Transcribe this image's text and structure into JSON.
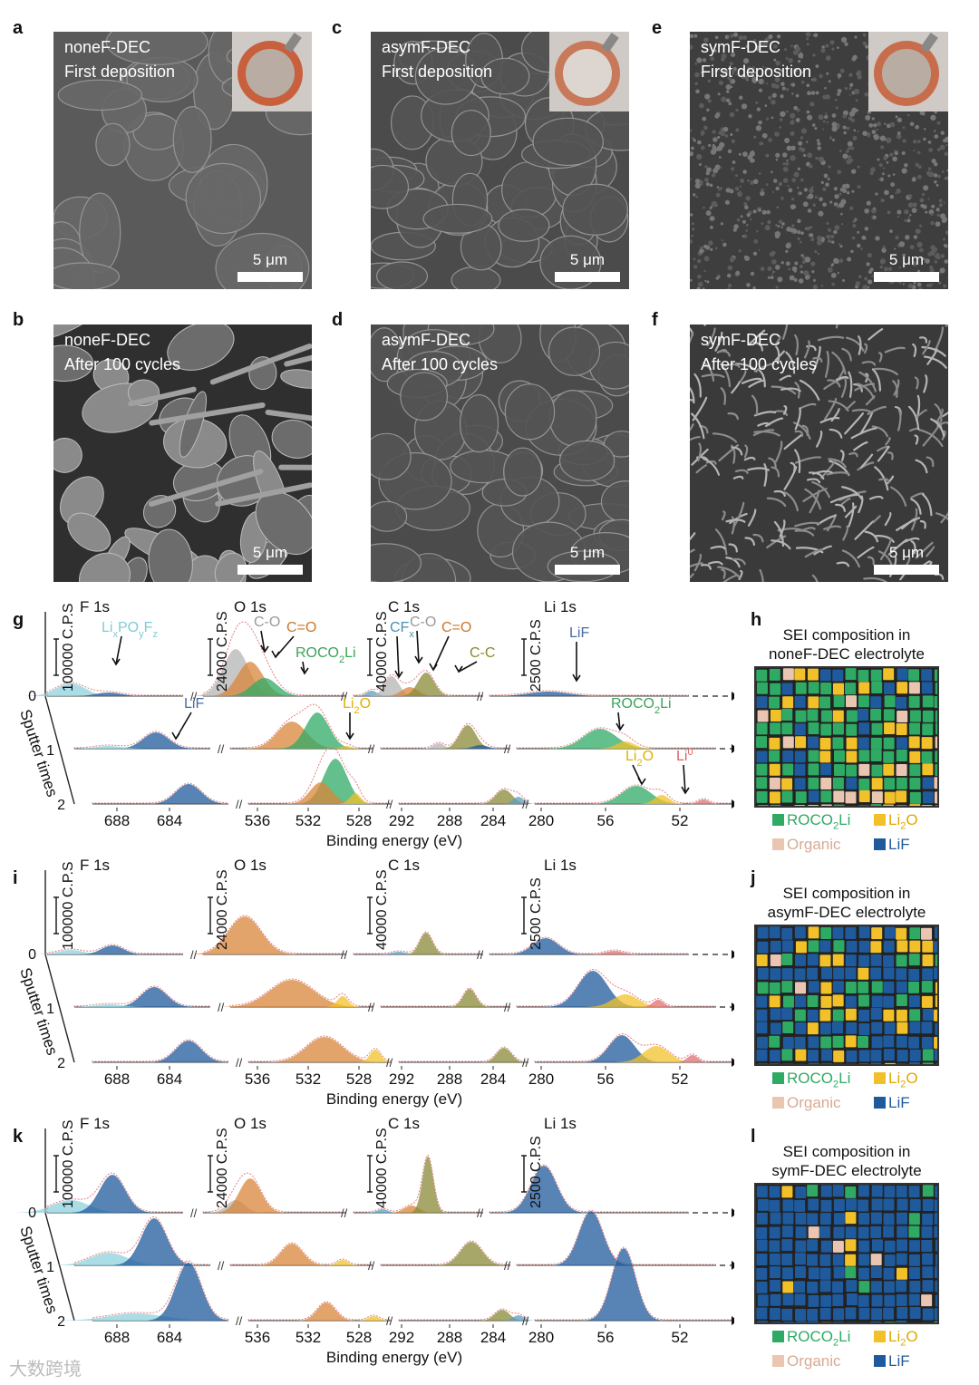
{
  "sem_panels": [
    {
      "id": "a",
      "letter": "a",
      "line1": "noneF-DEC",
      "line2": "First deposition",
      "scale": "5 μm",
      "inset": true,
      "inset_color": "#c8603e",
      "texture": "smooth"
    },
    {
      "id": "c",
      "letter": "c",
      "line1": "asymF-DEC",
      "line2": "First deposition",
      "scale": "5 μm",
      "inset": true,
      "inset_color": "#c8795a",
      "texture": "grain"
    },
    {
      "id": "e",
      "letter": "e",
      "line1": "symF-DEC",
      "line2": "First deposition",
      "scale": "5 μm",
      "inset": true,
      "inset_color": "#c86d4c",
      "texture": "rough"
    },
    {
      "id": "b",
      "letter": "b",
      "line1": "noneF-DEC",
      "line2": "After 100 cycles",
      "scale": "5 μm",
      "inset": false,
      "texture": "chunky"
    },
    {
      "id": "d",
      "letter": "d",
      "line1": "asymF-DEC",
      "line2": "After 100 cycles",
      "scale": "5 μm",
      "inset": false,
      "texture": "grain"
    },
    {
      "id": "f",
      "letter": "f",
      "line1": "symF-DEC",
      "line2": "After 100 cycles",
      "scale": "5 μm",
      "inset": false,
      "texture": "wires"
    }
  ],
  "xps_rows": [
    {
      "letter": "g",
      "comp_letter": "h",
      "comp_title_1": "SEI composition in",
      "comp_title_2": "noneF-DEC electrolyte",
      "annotations": [
        {
          "text": "LixPOyFz",
          "color": "#7fcbd9"
        },
        {
          "text": "C-O",
          "color": "#9a9a9a"
        },
        {
          "text": "C=O",
          "color": "#c8782b"
        },
        {
          "text": "ROCO2Li",
          "color": "#3aa35a"
        },
        {
          "text": "CFx",
          "color": "#4a8fb0"
        },
        {
          "text": "C-O",
          "color": "#9a9a9a"
        },
        {
          "text": "C=O",
          "color": "#c8782b"
        },
        {
          "text": "C-C",
          "color": "#8a8a2a"
        },
        {
          "text": "LiF",
          "color": "#4a6aa5"
        },
        {
          "text": "LiF",
          "color": "#4a6aa5"
        },
        {
          "text": "Li2O",
          "color": "#e0b000"
        },
        {
          "text": "ROCO2Li",
          "color": "#3aa35a"
        },
        {
          "text": "Li2O",
          "color": "#e0b000"
        },
        {
          "text": "Li0",
          "color": "#e06060"
        }
      ],
      "mix": {
        "roco": 0.55,
        "li2o": 0.2,
        "org": 0.07,
        "lif": 0.18
      }
    },
    {
      "letter": "i",
      "comp_letter": "j",
      "comp_title_1": "SEI composition in",
      "comp_title_2": "asymF-DEC electrolyte",
      "annotations": [],
      "mix": {
        "roco": 0.22,
        "li2o": 0.2,
        "org": 0.04,
        "lif": 0.54
      }
    },
    {
      "letter": "k",
      "comp_letter": "l",
      "comp_title_1": "SEI composition in",
      "comp_title_2": "symF-DEC electrolyte",
      "annotations": [],
      "mix": {
        "roco": 0.06,
        "li2o": 0.07,
        "org": 0.03,
        "lif": 0.84
      }
    }
  ],
  "xps_common": {
    "regions": [
      "F 1s",
      "O 1s",
      "C 1s",
      "Li 1s"
    ],
    "scale_bars": [
      "100000 C.P.S",
      "24000 C.P.S",
      "40000 C.P.S",
      "2500 C.P.S"
    ],
    "sputter_label": "Sputter times",
    "sputter_ticks": [
      "0",
      "1",
      "2"
    ],
    "x_ticks": [
      "688",
      "684",
      "536",
      "532",
      "528",
      "292",
      "288",
      "284",
      "280",
      "56",
      "52"
    ],
    "x_label": "Binding energy (eV)"
  },
  "legend": {
    "roco": "ROCO2Li",
    "li2o": "Li2O",
    "org": "Organic",
    "lif": "LiF"
  },
  "colors": {
    "roco": "#2faa64",
    "li2o": "#f2c12a",
    "org": "#eac6b2",
    "lif": "#1f5a9c",
    "c_o": "#b4b4b4",
    "c_eq_o": "#d9863a",
    "c_c": "#8a8a38",
    "lipof": "#8fd1de",
    "cfx": "#5b9fc0",
    "li0": "#e07070",
    "curve": "#e08080"
  },
  "watermark": "大数跨境"
}
